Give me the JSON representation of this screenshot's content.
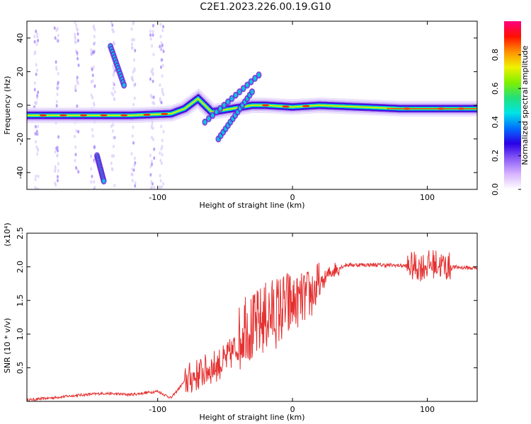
{
  "title": "C2E1.2023.226.00.19.G10",
  "chart_data": [
    {
      "type": "heatmap",
      "xlabel": "Height of straight line (km)",
      "ylabel": "Frequency (Hz)",
      "xlim": [
        -197,
        137
      ],
      "ylim": [
        -50,
        50
      ],
      "x_ticks": [
        -100,
        0,
        100
      ],
      "y_ticks": [
        -40,
        -20,
        0,
        20,
        40
      ],
      "colorbar": {
        "label": "Normalized spectral amplitude",
        "ticks": [
          0.0,
          0.2,
          0.4,
          0.6,
          0.8
        ],
        "range": [
          0,
          1
        ],
        "colors": [
          "#ffffff",
          "#d8b4fe",
          "#8b5cf6",
          "#2a00e6",
          "#0070ff",
          "#00e5e5",
          "#22e07a",
          "#80f000",
          "#f0f000",
          "#ff9000",
          "#ff1000",
          "#ff0080"
        ]
      },
      "ridge": [
        {
          "x": -197,
          "y": -6
        },
        {
          "x": -160,
          "y": -6
        },
        {
          "x": -120,
          "y": -6
        },
        {
          "x": -90,
          "y": -5
        },
        {
          "x": -80,
          "y": -2
        },
        {
          "x": -70,
          "y": 4
        },
        {
          "x": -60,
          "y": -4
        },
        {
          "x": -45,
          "y": -2
        },
        {
          "x": -30,
          "y": 0
        },
        {
          "x": -20,
          "y": 0
        },
        {
          "x": 0,
          "y": -1
        },
        {
          "x": 20,
          "y": 0
        },
        {
          "x": 50,
          "y": -1
        },
        {
          "x": 80,
          "y": -2
        },
        {
          "x": 137,
          "y": -2
        }
      ],
      "streaks": [
        {
          "from": [
            -135,
            35
          ],
          "to": [
            -125,
            12
          ]
        },
        {
          "from": [
            -145,
            -30
          ],
          "to": [
            -140,
            -45
          ]
        },
        {
          "from": [
            -65,
            -10
          ],
          "to": [
            -25,
            18
          ]
        },
        {
          "from": [
            -55,
            -20
          ],
          "to": [
            -30,
            8
          ]
        }
      ]
    },
    {
      "type": "line",
      "xlabel": "Height of straight line (km)",
      "ylabel": "SNR (10 * v/v)",
      "y_multiplier": "(x10⁴)",
      "xlim": [
        -197,
        137
      ],
      "ylim": [
        0,
        2.5
      ],
      "x_ticks": [
        -100,
        0,
        100
      ],
      "y_ticks": [
        0.5,
        1.0,
        1.5,
        2.0,
        2.5
      ],
      "series": [
        {
          "color": "#e53030",
          "envelope": [
            {
              "x": -197,
              "y": 0.02
            },
            {
              "x": -180,
              "y": 0.05
            },
            {
              "x": -160,
              "y": 0.09
            },
            {
              "x": -140,
              "y": 0.12
            },
            {
              "x": -120,
              "y": 0.1
            },
            {
              "x": -100,
              "y": 0.15
            },
            {
              "x": -90,
              "y": 0.05
            },
            {
              "x": -80,
              "y": 0.3
            },
            {
              "x": -70,
              "y": 0.4
            },
            {
              "x": -60,
              "y": 0.5
            },
            {
              "x": -50,
              "y": 0.6
            },
            {
              "x": -40,
              "y": 0.85
            },
            {
              "x": -35,
              "y": 1.2
            },
            {
              "x": -30,
              "y": 1.05
            },
            {
              "x": -20,
              "y": 1.25
            },
            {
              "x": -10,
              "y": 1.35
            },
            {
              "x": 0,
              "y": 1.45
            },
            {
              "x": 10,
              "y": 1.55
            },
            {
              "x": 20,
              "y": 1.7
            },
            {
              "x": 25,
              "y": 1.85
            },
            {
              "x": 30,
              "y": 1.95
            },
            {
              "x": 40,
              "y": 2.03
            },
            {
              "x": 60,
              "y": 2.03
            },
            {
              "x": 80,
              "y": 2.02
            },
            {
              "x": 95,
              "y": 2.0
            },
            {
              "x": 105,
              "y": 2.05
            },
            {
              "x": 115,
              "y": 2.0
            },
            {
              "x": 137,
              "y": 1.98
            }
          ]
        }
      ]
    }
  ]
}
